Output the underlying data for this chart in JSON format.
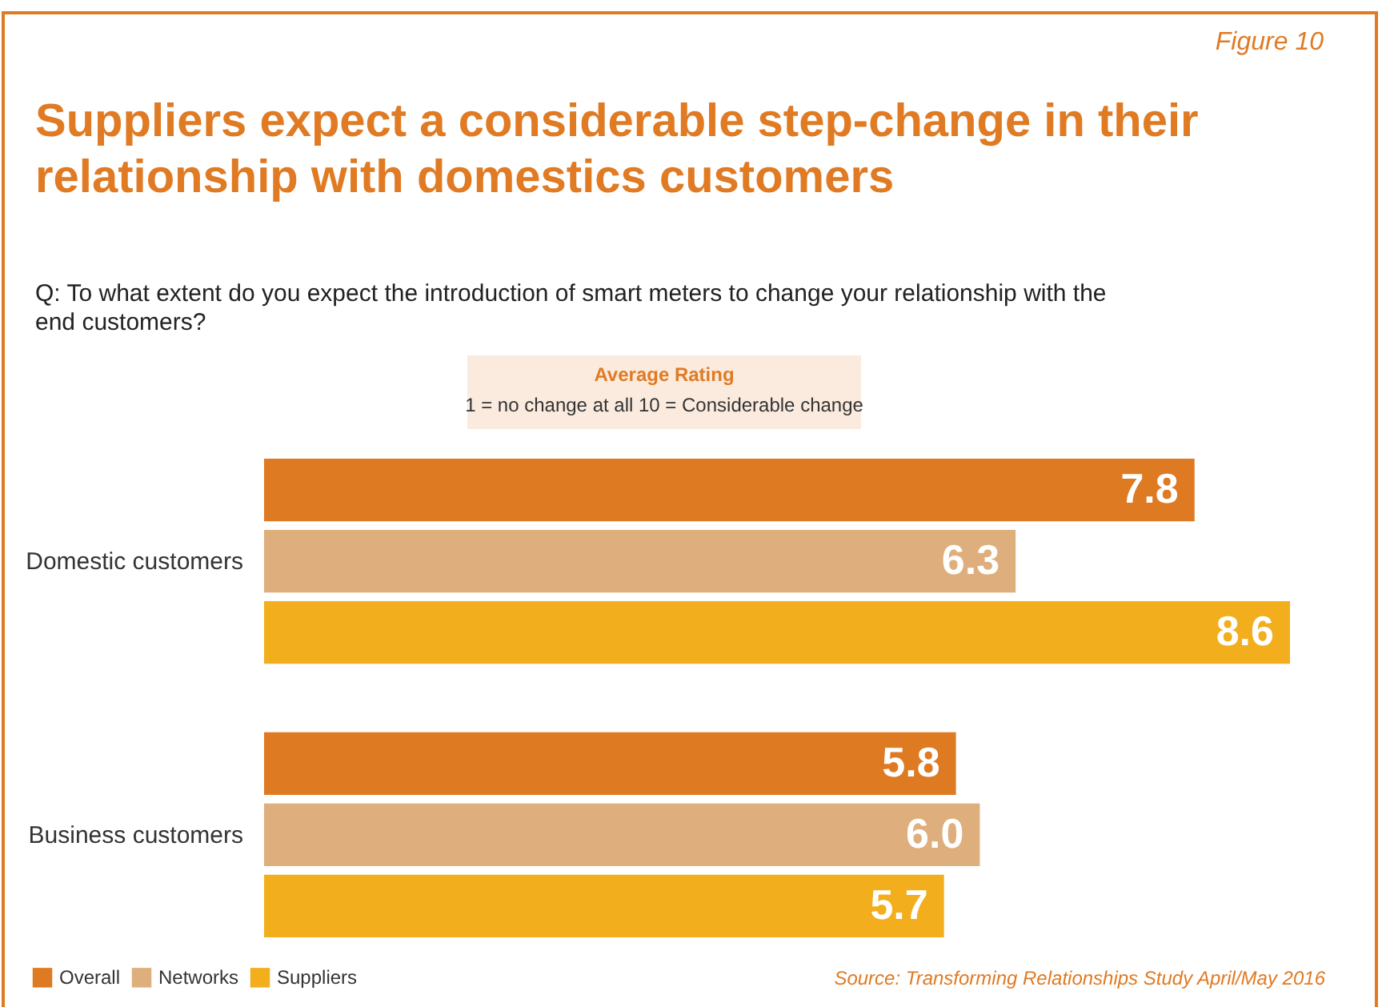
{
  "chart_data": {
    "type": "bar",
    "orientation": "horizontal",
    "title": "Suppliers expect a considerable step-change in their relationship with domestics customers",
    "subtitle": "Q: To what extent do you expect the introduction of smart meters to change your relationship with the end customers?",
    "annotations": [
      "Figure 10",
      "Average Rating",
      "1 = no change at all 10 = Considerable change",
      "Source: Transforming Relationships Study April/May 2016"
    ],
    "categories": [
      "Domestic customers",
      "Business customers"
    ],
    "series": [
      {
        "name": "Overall",
        "color": "#de7a22",
        "values": [
          7.8,
          5.8
        ],
        "value_labels": [
          "7.8",
          "5.8"
        ]
      },
      {
        "name": "Networks",
        "color": "#deaf7c",
        "values": [
          6.3,
          6.0
        ],
        "value_labels": [
          "6.3",
          "6.0"
        ]
      },
      {
        "name": "Suppliers",
        "color": "#f3ae1e",
        "values": [
          8.6,
          5.7
        ],
        "value_labels": [
          "8.6",
          "5.7"
        ]
      }
    ],
    "data_labels": true,
    "legend": "bottom left",
    "grid": false
  }
}
